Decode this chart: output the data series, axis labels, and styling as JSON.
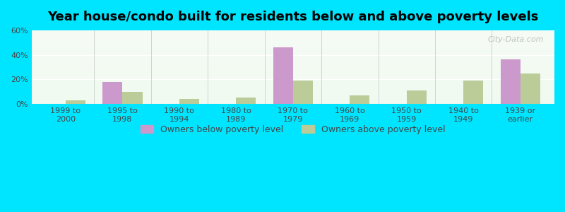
{
  "title": "Year house/condo built for residents below and above poverty levels",
  "categories": [
    "1999 to\n2000",
    "1995 to\n1998",
    "1990 to\n1994",
    "1980 to\n1989",
    "1970 to\n1979",
    "1960 to\n1969",
    "1950 to\n1959",
    "1940 to\n1949",
    "1939 or\nearlier"
  ],
  "below_poverty": [
    0.0,
    18.0,
    0.0,
    0.0,
    46.0,
    0.0,
    0.0,
    0.0,
    36.5
  ],
  "above_poverty": [
    3.0,
    10.0,
    4.0,
    5.5,
    19.0,
    7.0,
    11.0,
    19.0,
    25.0
  ],
  "below_color": "#cc99cc",
  "above_color": "#bbcc99",
  "ylim": [
    0,
    60
  ],
  "yticks": [
    0,
    20,
    40,
    60
  ],
  "ytick_labels": [
    "0%",
    "20%",
    "40%",
    "60%"
  ],
  "background_top": "#e8f5e8",
  "background_bottom": "#f0fff0",
  "outer_bg": "#00e5ff",
  "bar_width": 0.35,
  "legend_below_label": "Owners below poverty level",
  "legend_above_label": "Owners above poverty level",
  "title_fontsize": 13,
  "tick_fontsize": 8,
  "legend_fontsize": 9
}
